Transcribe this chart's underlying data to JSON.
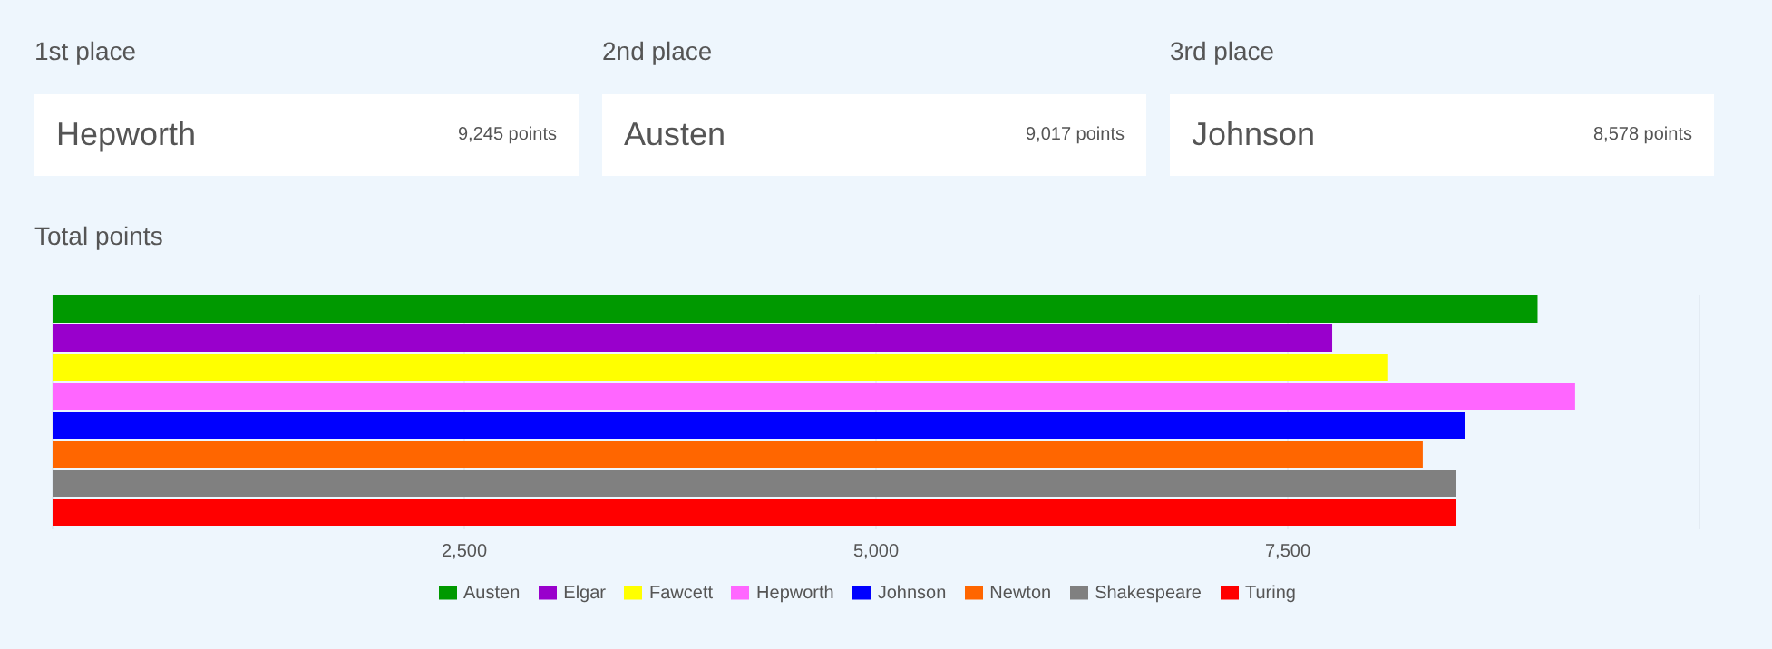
{
  "chart_data": [
    {
      "type": "other",
      "title": "1st place",
      "annotations": [
        "Hepworth",
        "9,245 points"
      ]
    },
    {
      "type": "other",
      "title": "2nd place",
      "annotations": [
        "Austen",
        "9,017 points"
      ]
    },
    {
      "type": "other",
      "title": "3rd place",
      "annotations": [
        "Johnson",
        "8,578 points"
      ]
    },
    {
      "type": "bar",
      "title": "Total points",
      "orientation": "horizontal",
      "categories": [
        null
      ],
      "series": [
        {
          "name": "Austen",
          "color": "#009900",
          "values": [
            9017
          ]
        },
        {
          "name": "Elgar",
          "color": "#9900cc",
          "values": [
            7770
          ]
        },
        {
          "name": "Fawcett",
          "color": "#ffff00",
          "values": [
            8110
          ]
        },
        {
          "name": "Hepworth",
          "color": "#ff66ff",
          "values": [
            9245
          ]
        },
        {
          "name": "Johnson",
          "color": "#0000ff",
          "values": [
            8578
          ]
        },
        {
          "name": "Newton",
          "color": "#ff6600",
          "values": [
            8320
          ]
        },
        {
          "name": "Shakespeare",
          "color": "#808080",
          "values": [
            8520
          ]
        },
        {
          "name": "Turing",
          "color": "#ff0000",
          "values": [
            8520
          ]
        }
      ],
      "xlim": [
        0,
        10000
      ],
      "xticks": [
        {
          "value": 0,
          "label": null
        },
        {
          "value": 2500,
          "label": "2,500"
        },
        {
          "value": 5000,
          "label": "5,000"
        },
        {
          "value": 7500,
          "label": "7,500"
        },
        {
          "value": 10000,
          "label": null
        }
      ],
      "grid": "x",
      "legend": "bottom"
    }
  ]
}
